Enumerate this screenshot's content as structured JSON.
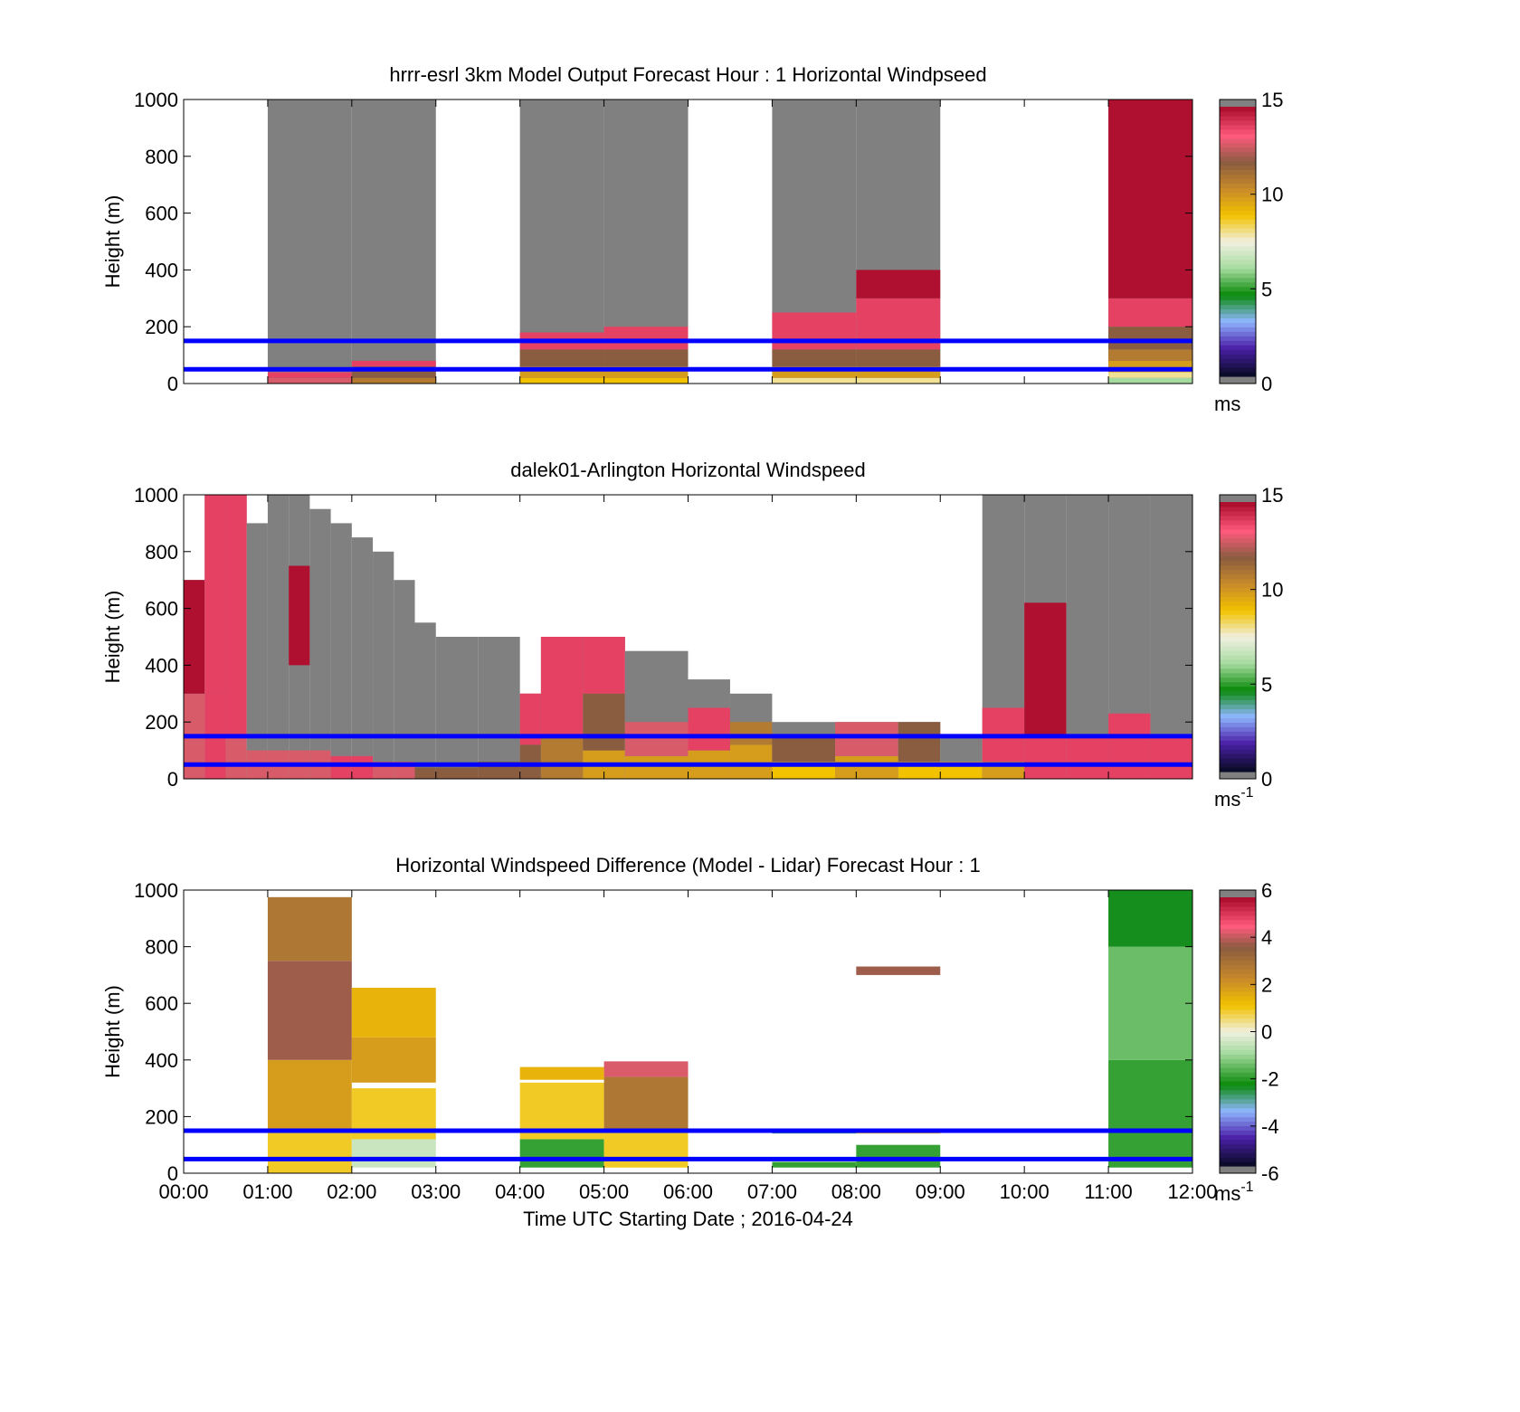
{
  "figure": {
    "xaxis_label": "Time UTC  Starting Date ; 2016-04-24",
    "xticks": [
      "00:00",
      "01:00",
      "02:00",
      "03:00",
      "04:00",
      "05:00",
      "06:00",
      "07:00",
      "08:00",
      "09:00",
      "10:00",
      "11:00",
      "12:00"
    ],
    "yticks": [
      "0",
      "200",
      "400",
      "600",
      "800",
      "1000"
    ]
  },
  "chart_data": [
    {
      "type": "heatmap",
      "title": "hrrr-esrl 3km Model Output   Forecast Hour : 1 Horizontal Windpseed",
      "ylabel": "Height (m)",
      "xlabel": "",
      "xlim_hours": [
        0,
        12
      ],
      "ylim": [
        0,
        1000
      ],
      "colorbar": {
        "ticks": [
          "0",
          "5",
          "10",
          "15"
        ],
        "range": [
          0,
          15
        ],
        "unit_label": "ms",
        "unit_superscript": "",
        "palette": "speed"
      },
      "reference_lines_m": [
        50,
        150
      ],
      "columns": [
        {
          "t0": 1,
          "t1": 2,
          "top": 1000,
          "layers": [
            [
              0,
              20,
              13
            ],
            [
              20,
              40,
              14
            ]
          ]
        },
        {
          "t0": 2,
          "t1": 3,
          "top": 1000,
          "layers": [
            [
              0,
              20,
              11
            ],
            [
              20,
              60,
              12
            ],
            [
              60,
              80,
              14
            ]
          ]
        },
        {
          "t0": 4,
          "t1": 5,
          "top": 1000,
          "layers": [
            [
              0,
              20,
              9
            ],
            [
              20,
              60,
              10
            ],
            [
              60,
              120,
              12
            ],
            [
              120,
              180,
              14
            ]
          ]
        },
        {
          "t0": 5,
          "t1": 6,
          "top": 1000,
          "layers": [
            [
              0,
              20,
              9
            ],
            [
              20,
              60,
              10
            ],
            [
              60,
              120,
              12
            ],
            [
              120,
              200,
              14
            ]
          ]
        },
        {
          "t0": 7,
          "t1": 8,
          "top": 1000,
          "layers": [
            [
              0,
              20,
              8
            ],
            [
              20,
              60,
              10
            ],
            [
              60,
              120,
              12
            ],
            [
              120,
              250,
              14
            ]
          ]
        },
        {
          "t0": 8,
          "t1": 9,
          "top": 1000,
          "layers": [
            [
              0,
              20,
              8
            ],
            [
              20,
              60,
              10
            ],
            [
              60,
              120,
              12
            ],
            [
              120,
              300,
              14
            ],
            [
              300,
              400,
              15
            ]
          ]
        },
        {
          "t0": 11,
          "t1": 12,
          "top": 1000,
          "layers": [
            [
              0,
              20,
              6
            ],
            [
              20,
              40,
              8
            ],
            [
              40,
              80,
              10
            ],
            [
              80,
              120,
              11
            ],
            [
              120,
              200,
              12
            ],
            [
              200,
              300,
              14
            ],
            [
              300,
              1000,
              15
            ]
          ]
        }
      ]
    },
    {
      "type": "heatmap",
      "title": "dalek01-Arlington  Horizontal Windspeed",
      "ylabel": "Height (m)",
      "xlabel": "",
      "xlim_hours": [
        0,
        12
      ],
      "ylim": [
        0,
        1000
      ],
      "colorbar": {
        "ticks": [
          "0",
          "5",
          "10",
          "15"
        ],
        "range": [
          0,
          15
        ],
        "unit_label": "ms",
        "unit_superscript": "-1",
        "palette": "speed"
      },
      "reference_lines_m": [
        50,
        150
      ],
      "columns": [
        {
          "t0": 0.0,
          "t1": 0.25,
          "top": 700,
          "layers": [
            [
              0,
              300,
              13
            ],
            [
              300,
              700,
              15
            ]
          ]
        },
        {
          "t0": 0.25,
          "t1": 0.5,
          "top": 1000,
          "layers": [
            [
              0,
              300,
              14
            ],
            [
              300,
              1000,
              14
            ]
          ]
        },
        {
          "t0": 0.5,
          "t1": 0.75,
          "top": 1000,
          "layers": [
            [
              0,
              150,
              13
            ],
            [
              150,
              1000,
              14
            ]
          ]
        },
        {
          "t0": 0.75,
          "t1": 1.0,
          "top": 900,
          "layers": [
            [
              0,
              100,
              13
            ]
          ]
        },
        {
          "t0": 1.0,
          "t1": 1.25,
          "top": 1000,
          "layers": [
            [
              0,
              100,
              13
            ]
          ]
        },
        {
          "t0": 1.25,
          "t1": 1.5,
          "top": 1000,
          "layers": [
            [
              0,
              100,
              13
            ],
            [
              400,
              750,
              15
            ]
          ]
        },
        {
          "t0": 1.5,
          "t1": 1.75,
          "top": 950,
          "layers": [
            [
              0,
              100,
              13
            ]
          ]
        },
        {
          "t0": 1.75,
          "t1": 2.0,
          "top": 900,
          "layers": [
            [
              0,
              80,
              14
            ]
          ]
        },
        {
          "t0": 2.0,
          "t1": 2.25,
          "top": 850,
          "layers": [
            [
              0,
              80,
              14
            ]
          ]
        },
        {
          "t0": 2.25,
          "t1": 2.5,
          "top": 800,
          "layers": [
            [
              0,
              60,
              13
            ]
          ]
        },
        {
          "t0": 2.5,
          "t1": 2.75,
          "top": 700,
          "layers": [
            [
              0,
              60,
              13
            ]
          ]
        },
        {
          "t0": 2.75,
          "t1": 3.0,
          "top": 550,
          "layers": [
            [
              0,
              40,
              12
            ]
          ]
        },
        {
          "t0": 3.0,
          "t1": 3.5,
          "top": 500,
          "layers": [
            [
              0,
              40,
              12
            ]
          ]
        },
        {
          "t0": 3.5,
          "t1": 4.0,
          "top": 500,
          "layers": [
            [
              0,
              60,
              12
            ]
          ]
        },
        {
          "t0": 4.0,
          "t1": 4.25,
          "top": 300,
          "layers": [
            [
              0,
              120,
              12
            ],
            [
              120,
              300,
              14
            ]
          ]
        },
        {
          "t0": 4.25,
          "t1": 4.75,
          "top": 500,
          "layers": [
            [
              0,
              150,
              11
            ],
            [
              150,
              500,
              14
            ]
          ]
        },
        {
          "t0": 4.75,
          "t1": 5.25,
          "top": 500,
          "layers": [
            [
              0,
              100,
              10
            ],
            [
              100,
              300,
              12
            ],
            [
              300,
              500,
              14
            ]
          ]
        },
        {
          "t0": 5.25,
          "t1": 6.0,
          "top": 450,
          "layers": [
            [
              0,
              80,
              10
            ],
            [
              80,
              200,
              13
            ]
          ]
        },
        {
          "t0": 6.0,
          "t1": 6.5,
          "top": 350,
          "layers": [
            [
              0,
              100,
              10
            ],
            [
              100,
              250,
              14
            ]
          ]
        },
        {
          "t0": 6.5,
          "t1": 7.0,
          "top": 300,
          "layers": [
            [
              0,
              120,
              10
            ],
            [
              120,
              200,
              11
            ]
          ]
        },
        {
          "t0": 7.0,
          "t1": 7.75,
          "top": 200,
          "layers": [
            [
              0,
              60,
              9
            ],
            [
              60,
              150,
              12
            ]
          ]
        },
        {
          "t0": 7.75,
          "t1": 8.5,
          "top": 200,
          "layers": [
            [
              0,
              80,
              10
            ],
            [
              80,
              200,
              13
            ]
          ]
        },
        {
          "t0": 8.5,
          "t1": 9.0,
          "top": 200,
          "layers": [
            [
              0,
              60,
              9
            ],
            [
              60,
              200,
              12
            ]
          ]
        },
        {
          "t0": 9.0,
          "t1": 9.5,
          "top": 150,
          "layers": [
            [
              0,
              60,
              9
            ]
          ]
        },
        {
          "t0": 9.5,
          "t1": 10.0,
          "top": 1000,
          "layers": [
            [
              0,
              60,
              10
            ],
            [
              60,
              250,
              14
            ]
          ]
        },
        {
          "t0": 10.0,
          "t1": 10.5,
          "top": 1000,
          "layers": [
            [
              0,
              150,
              14
            ],
            [
              150,
              620,
              15
            ]
          ]
        },
        {
          "t0": 10.5,
          "t1": 11.0,
          "top": 1000,
          "layers": [
            [
              0,
              150,
              14
            ]
          ]
        },
        {
          "t0": 11.0,
          "t1": 11.5,
          "top": 1000,
          "layers": [
            [
              0,
              230,
              14
            ]
          ]
        },
        {
          "t0": 11.5,
          "t1": 12.0,
          "top": 1000,
          "layers": [
            [
              0,
              150,
              14
            ]
          ]
        }
      ]
    },
    {
      "type": "heatmap",
      "title": "Horizontal Windspeed Difference (Model - Lidar) Forecast Hour : 1",
      "ylabel": "Height (m)",
      "xlabel": "Time UTC  Starting Date ; 2016-04-24",
      "xlim_hours": [
        0,
        12
      ],
      "ylim": [
        0,
        1000
      ],
      "colorbar": {
        "ticks": [
          "-6",
          "-4",
          "-2",
          "0",
          "2",
          "4",
          "6"
        ],
        "range": [
          -6,
          6
        ],
        "unit_label": "ms",
        "unit_superscript": "-1",
        "palette": "diff"
      },
      "reference_lines_m": [
        50,
        150
      ],
      "columns": [
        {
          "t0": 1,
          "t1": 2,
          "top": 0,
          "layers": [
            [
              0,
              150,
              1
            ],
            [
              150,
              400,
              2
            ],
            [
              400,
              750,
              4
            ],
            [
              750,
              975,
              3
            ]
          ]
        },
        {
          "t0": 2,
          "t1": 3,
          "top": 0,
          "layers": [
            [
              20,
              120,
              -0.5
            ],
            [
              120,
              300,
              1
            ],
            [
              320,
              480,
              2
            ],
            [
              480,
              655,
              1.5
            ]
          ]
        },
        {
          "t0": 4,
          "t1": 5,
          "top": 0,
          "layers": [
            [
              20,
              120,
              -2
            ],
            [
              120,
              320,
              1
            ],
            [
              330,
              375,
              1.5
            ]
          ]
        },
        {
          "t0": 5,
          "t1": 6,
          "top": 0,
          "layers": [
            [
              20,
              150,
              1
            ],
            [
              150,
              340,
              3
            ],
            [
              340,
              395,
              4.5
            ]
          ]
        },
        {
          "t0": 7,
          "t1": 8,
          "top": 0,
          "layers": [
            [
              20,
              40,
              -2
            ],
            [
              140,
              145,
              -3
            ]
          ]
        },
        {
          "t0": 8,
          "t1": 9,
          "top": 0,
          "layers": [
            [
              20,
              100,
              -2
            ],
            [
              140,
              150,
              1
            ],
            [
              700,
              730,
              4
            ]
          ]
        },
        {
          "t0": 11,
          "t1": 12,
          "top": 0,
          "layers": [
            [
              20,
              400,
              -2
            ],
            [
              400,
              800,
              -1.5
            ],
            [
              800,
              1000,
              -2.5
            ]
          ]
        }
      ]
    }
  ]
}
